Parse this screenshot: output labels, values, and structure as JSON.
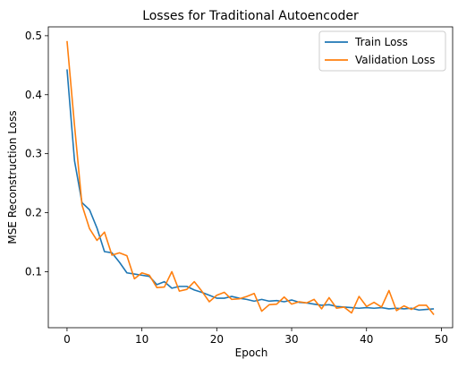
{
  "chart_data": {
    "type": "line",
    "title": "Losses for Traditional Autoencoder",
    "xlabel": "Epoch",
    "ylabel": "MSE Reconstruction Loss",
    "xlim": [
      -2.5,
      51.5
    ],
    "ylim": [
      0.005,
      0.515
    ],
    "xticks": [
      0,
      10,
      20,
      30,
      40,
      50
    ],
    "yticks": [
      0.1,
      0.2,
      0.3,
      0.4,
      0.5
    ],
    "legend": "top-right",
    "grid": false,
    "x": [
      0,
      1,
      2,
      3,
      4,
      5,
      6,
      7,
      8,
      9,
      10,
      11,
      12,
      13,
      14,
      15,
      16,
      17,
      18,
      19,
      20,
      21,
      22,
      23,
      24,
      25,
      26,
      27,
      28,
      29,
      30,
      31,
      32,
      33,
      34,
      35,
      36,
      37,
      38,
      39,
      40,
      41,
      42,
      43,
      44,
      45,
      46,
      47,
      48,
      49
    ],
    "series": [
      {
        "name": "Train Loss",
        "color": "#1f77b4",
        "values": [
          0.443,
          0.288,
          0.217,
          0.205,
          0.174,
          0.134,
          0.132,
          0.116,
          0.098,
          0.096,
          0.094,
          0.092,
          0.078,
          0.083,
          0.072,
          0.075,
          0.075,
          0.069,
          0.065,
          0.06,
          0.055,
          0.055,
          0.058,
          0.055,
          0.053,
          0.05,
          0.053,
          0.05,
          0.051,
          0.049,
          0.052,
          0.048,
          0.047,
          0.045,
          0.043,
          0.044,
          0.041,
          0.04,
          0.039,
          0.038,
          0.039,
          0.038,
          0.039,
          0.037,
          0.038,
          0.037,
          0.038,
          0.035,
          0.036,
          0.037
        ]
      },
      {
        "name": "Validation Loss",
        "color": "#ff7f0e",
        "values": [
          0.491,
          0.348,
          0.213,
          0.173,
          0.153,
          0.167,
          0.128,
          0.132,
          0.127,
          0.088,
          0.098,
          0.094,
          0.073,
          0.074,
          0.1,
          0.067,
          0.07,
          0.083,
          0.067,
          0.049,
          0.06,
          0.065,
          0.053,
          0.054,
          0.058,
          0.063,
          0.033,
          0.044,
          0.045,
          0.057,
          0.045,
          0.049,
          0.047,
          0.053,
          0.037,
          0.056,
          0.038,
          0.04,
          0.03,
          0.058,
          0.041,
          0.048,
          0.04,
          0.068,
          0.034,
          0.042,
          0.036,
          0.043,
          0.043,
          0.027
        ]
      }
    ]
  }
}
